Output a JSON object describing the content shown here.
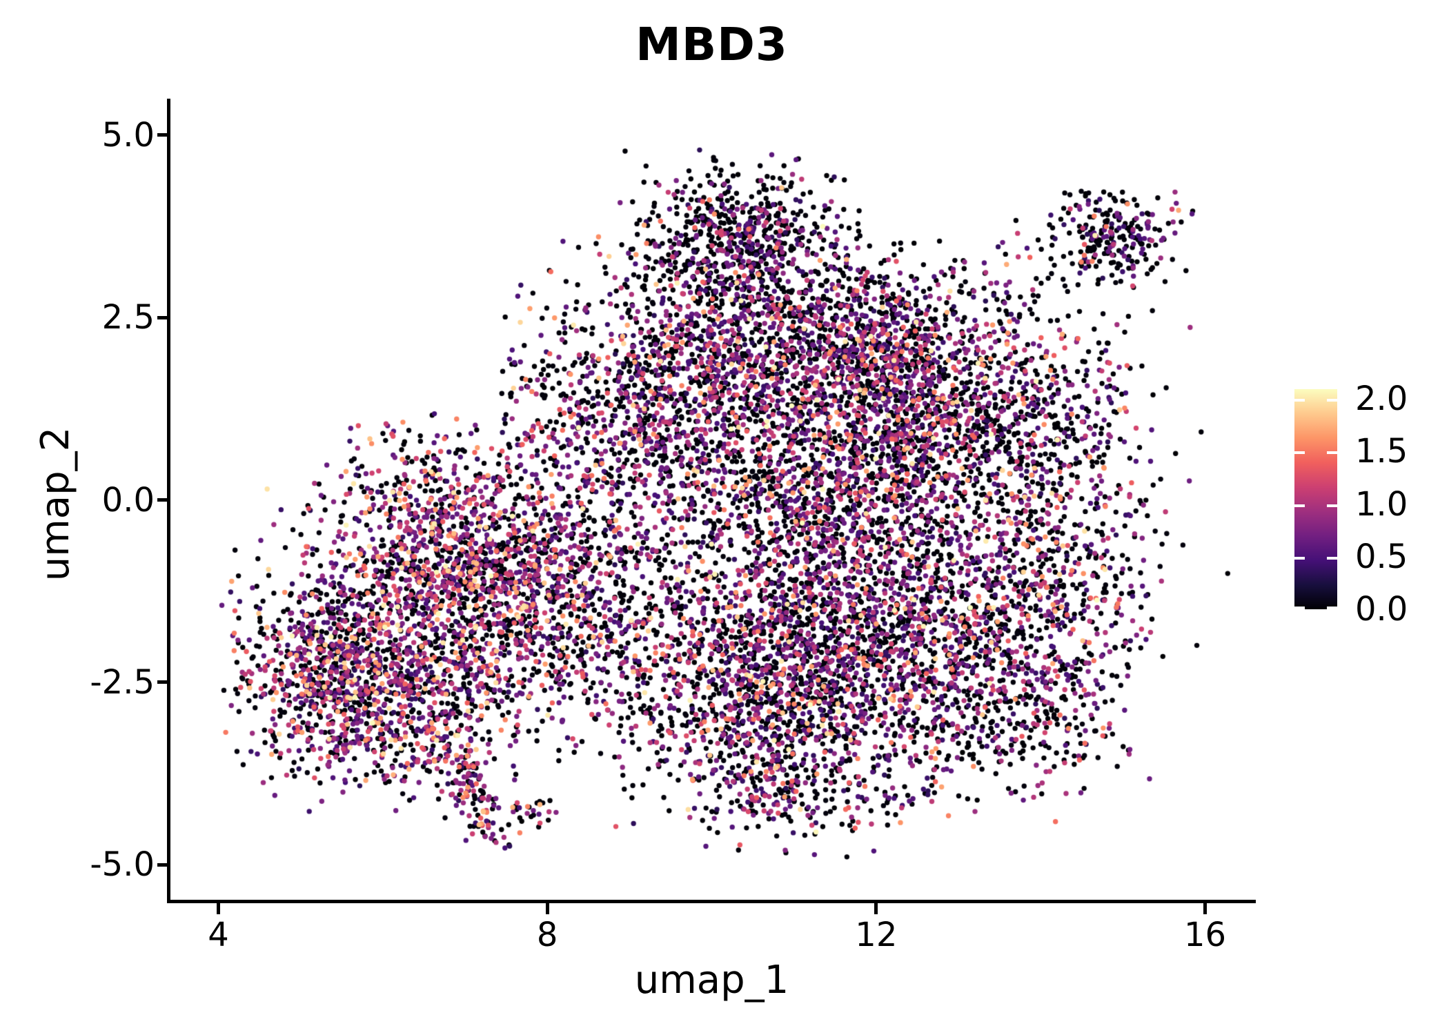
{
  "chart_data": {
    "type": "scatter",
    "title": "MBD3",
    "xlabel": "umap_1",
    "ylabel": "umap_2",
    "xlim": [
      3.4,
      16.6
    ],
    "ylim": [
      -5.5,
      5.5
    ],
    "grid": false,
    "background": "#ffffff",
    "axis_color": "#000000",
    "xticks": {
      "values": [
        4,
        8,
        12,
        16
      ],
      "labels": [
        "4",
        "8",
        "12",
        "16"
      ]
    },
    "yticks": {
      "values": [
        5.0,
        2.5,
        0.0,
        -2.5,
        -5.0
      ],
      "labels": [
        "5.0",
        "2.5",
        "0.0",
        "-2.5",
        "-5.0"
      ]
    },
    "colorbar": {
      "position": "right",
      "label_values": [
        2.0,
        1.5,
        1.0,
        0.5,
        0.0
      ],
      "labels": [
        "2.0",
        "1.5",
        "1.0",
        "0.5",
        "0.0"
      ],
      "range": [
        0,
        2
      ],
      "colormap": "magma",
      "stops": [
        "#000004",
        "#180f3e",
        "#451077",
        "#721f81",
        "#9f2f7f",
        "#cd4071",
        "#f1605d",
        "#fd9567",
        "#fec98d",
        "#fcfdbf"
      ],
      "tick_dash_color": "#ffffff"
    },
    "point_radius": 3.7,
    "seed": 7,
    "expression_bins": [
      [
        0.0,
        0.04
      ],
      [
        0.3,
        0.72
      ],
      [
        0.72,
        1.15
      ],
      [
        1.15,
        1.65
      ],
      [
        1.65,
        2.0
      ]
    ],
    "expression_profiles": {
      "standard": [
        0.5,
        0.25,
        0.16,
        0.07,
        0.02
      ],
      "warm": [
        0.4,
        0.25,
        0.2,
        0.11,
        0.04
      ],
      "cold": [
        0.63,
        0.21,
        0.12,
        0.035,
        0.005
      ]
    },
    "clusters": [
      {
        "name": "left-core",
        "cx": 6.25,
        "cy": -1.85,
        "sx": 0.95,
        "sy": 0.85,
        "n": 1000,
        "profile": "warm"
      },
      {
        "name": "left-low",
        "cx": 5.95,
        "cy": -2.95,
        "sx": 0.75,
        "sy": 0.55,
        "n": 520,
        "profile": "warm"
      },
      {
        "name": "left-upper",
        "cx": 6.8,
        "cy": -0.55,
        "sx": 0.75,
        "sy": 0.6,
        "n": 480,
        "profile": "warm"
      },
      {
        "name": "left-tip",
        "cx": 5.15,
        "cy": -2.3,
        "sx": 0.4,
        "sy": 0.55,
        "n": 260,
        "profile": "warm"
      },
      {
        "name": "left-right-part",
        "cx": 7.3,
        "cy": -1.4,
        "sx": 0.6,
        "sy": 0.8,
        "n": 420,
        "profile": "warm"
      },
      {
        "name": "left-top-sparse",
        "cx": 6.5,
        "cy": 0.4,
        "sx": 0.6,
        "sy": 0.45,
        "n": 140,
        "profile": "standard"
      },
      {
        "name": "tail",
        "type": "path",
        "path": [
          [
            6.95,
            -3.5
          ],
          [
            7.1,
            -4.0
          ],
          [
            7.35,
            -4.6
          ]
        ],
        "width": 0.16,
        "n": 130,
        "profile": "warm"
      },
      {
        "name": "tail-hook",
        "cx": 7.8,
        "cy": -4.25,
        "sx": 0.18,
        "sy": 0.13,
        "n": 26,
        "profile": "standard"
      },
      {
        "name": "bridge",
        "cx": 8.35,
        "cy": -0.1,
        "sx": 0.65,
        "sy": 1.0,
        "n": 380,
        "profile": "standard"
      },
      {
        "name": "bridge-low",
        "cx": 8.5,
        "cy": -1.8,
        "sx": 0.7,
        "sy": 0.8,
        "n": 420,
        "profile": "standard"
      },
      {
        "name": "upper-left-wing",
        "cx": 9.4,
        "cy": 1.6,
        "sx": 0.85,
        "sy": 0.85,
        "n": 850,
        "profile": "standard"
      },
      {
        "name": "top-protrusion",
        "cx": 10.35,
        "cy": 3.6,
        "sx": 0.62,
        "sy": 0.5,
        "n": 600,
        "profile": "cold"
      },
      {
        "name": "top-mid",
        "cx": 10.9,
        "cy": 2.35,
        "sx": 0.85,
        "sy": 0.6,
        "n": 650,
        "profile": "standard"
      },
      {
        "name": "upper-right-top",
        "cx": 12.1,
        "cy": 2.1,
        "sx": 0.75,
        "sy": 0.5,
        "n": 420,
        "profile": "standard"
      },
      {
        "name": "upper-right",
        "cx": 12.7,
        "cy": 1.2,
        "sx": 1.15,
        "sy": 0.75,
        "n": 1300,
        "profile": "standard"
      },
      {
        "name": "mid-core",
        "cx": 11.3,
        "cy": -0.2,
        "sx": 1.25,
        "sy": 0.95,
        "n": 1600,
        "profile": "standard"
      },
      {
        "name": "lower-right",
        "cx": 12.4,
        "cy": -2.2,
        "sx": 1.25,
        "sy": 0.95,
        "n": 1700,
        "profile": "standard"
      },
      {
        "name": "lower-mid",
        "cx": 10.5,
        "cy": -2.7,
        "sx": 0.85,
        "sy": 0.75,
        "n": 950,
        "profile": "standard"
      },
      {
        "name": "bottom-tip",
        "cx": 10.8,
        "cy": -4.1,
        "sx": 0.5,
        "sy": 0.35,
        "n": 130,
        "profile": "standard"
      },
      {
        "name": "right-edge",
        "cx": 14.2,
        "cy": -0.6,
        "sx": 0.55,
        "sy": 1.1,
        "n": 420,
        "profile": "standard"
      },
      {
        "name": "right-sparse",
        "cx": 15.2,
        "cy": -0.1,
        "sx": 0.5,
        "sy": 1.1,
        "n": 40,
        "profile": "cold"
      },
      {
        "name": "bottom-right-sparse",
        "cx": 14.1,
        "cy": -2.9,
        "sx": 0.5,
        "sy": 0.5,
        "n": 70,
        "profile": "cold"
      },
      {
        "name": "top-right-sparse",
        "cx": 12.6,
        "cy": 2.9,
        "sx": 0.9,
        "sy": 0.45,
        "n": 70,
        "profile": "cold"
      },
      {
        "name": "satellite",
        "cx": 14.9,
        "cy": 3.6,
        "sx": 0.4,
        "sy": 0.32,
        "n": 230,
        "profile": "cold"
      },
      {
        "name": "satellite-sparse",
        "cx": 14.4,
        "cy": 3.1,
        "sx": 0.5,
        "sy": 0.4,
        "n": 25,
        "profile": "cold"
      }
    ]
  }
}
